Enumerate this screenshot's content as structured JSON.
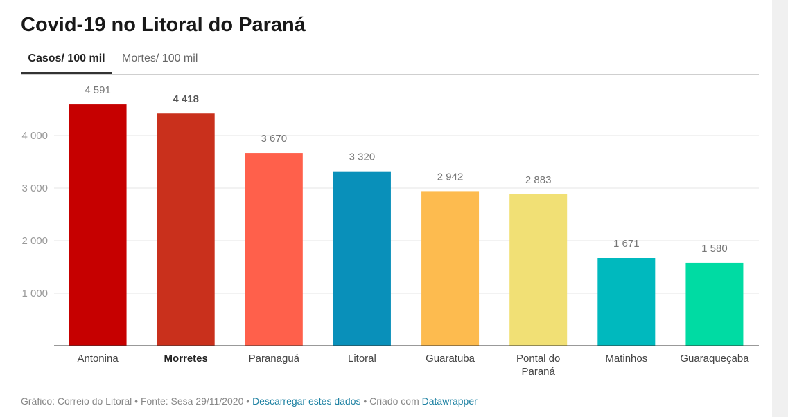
{
  "title": "Covid-19 no Litoral do Paraná",
  "tabs": [
    {
      "label": "Casos/ 100 mil",
      "active": true
    },
    {
      "label": "Mortes/ 100 mil",
      "active": false
    }
  ],
  "chart_data": {
    "type": "bar",
    "title": "Covid-19 no Litoral do Paraná",
    "xlabel": "",
    "ylabel": "",
    "ylim": [
      0,
      4800
    ],
    "yticks": [
      1000,
      2000,
      3000,
      4000
    ],
    "ytick_labels": [
      "1 000",
      "2 000",
      "3 000",
      "4 000"
    ],
    "grid": true,
    "highlighted_category": "Morretes",
    "bars": [
      {
        "label": "Antonina",
        "value": 4591,
        "display": "4 591",
        "color": "#c60000"
      },
      {
        "label": "Morretes",
        "value": 4418,
        "display": "4 418",
        "color": "#c9301c"
      },
      {
        "label": "Paranaguá",
        "value": 3670,
        "display": "3 670",
        "color": "#ff604b"
      },
      {
        "label": "Litoral",
        "value": 3320,
        "display": "3 320",
        "color": "#0990ba"
      },
      {
        "label": "Guaratuba",
        "value": 2942,
        "display": "2 942",
        "color": "#fdbb4f"
      },
      {
        "label": "Pontal do Paraná",
        "value": 2883,
        "display": "2 883",
        "color": "#f1e075"
      },
      {
        "label": "Matinhos",
        "value": 1671,
        "display": "1 671",
        "color": "#00b9be"
      },
      {
        "label": "Guaraqueçaba",
        "value": 1580,
        "display": "1 580",
        "color": "#00dba3"
      }
    ]
  },
  "footer": {
    "prefix": "Gráfico: Correio do Litoral • Fonte: Sesa 29/11/2020 • ",
    "download_link": "Descarregar estes dados",
    "middle": " • Criado com ",
    "datawrapper_link": "Datawrapper"
  }
}
